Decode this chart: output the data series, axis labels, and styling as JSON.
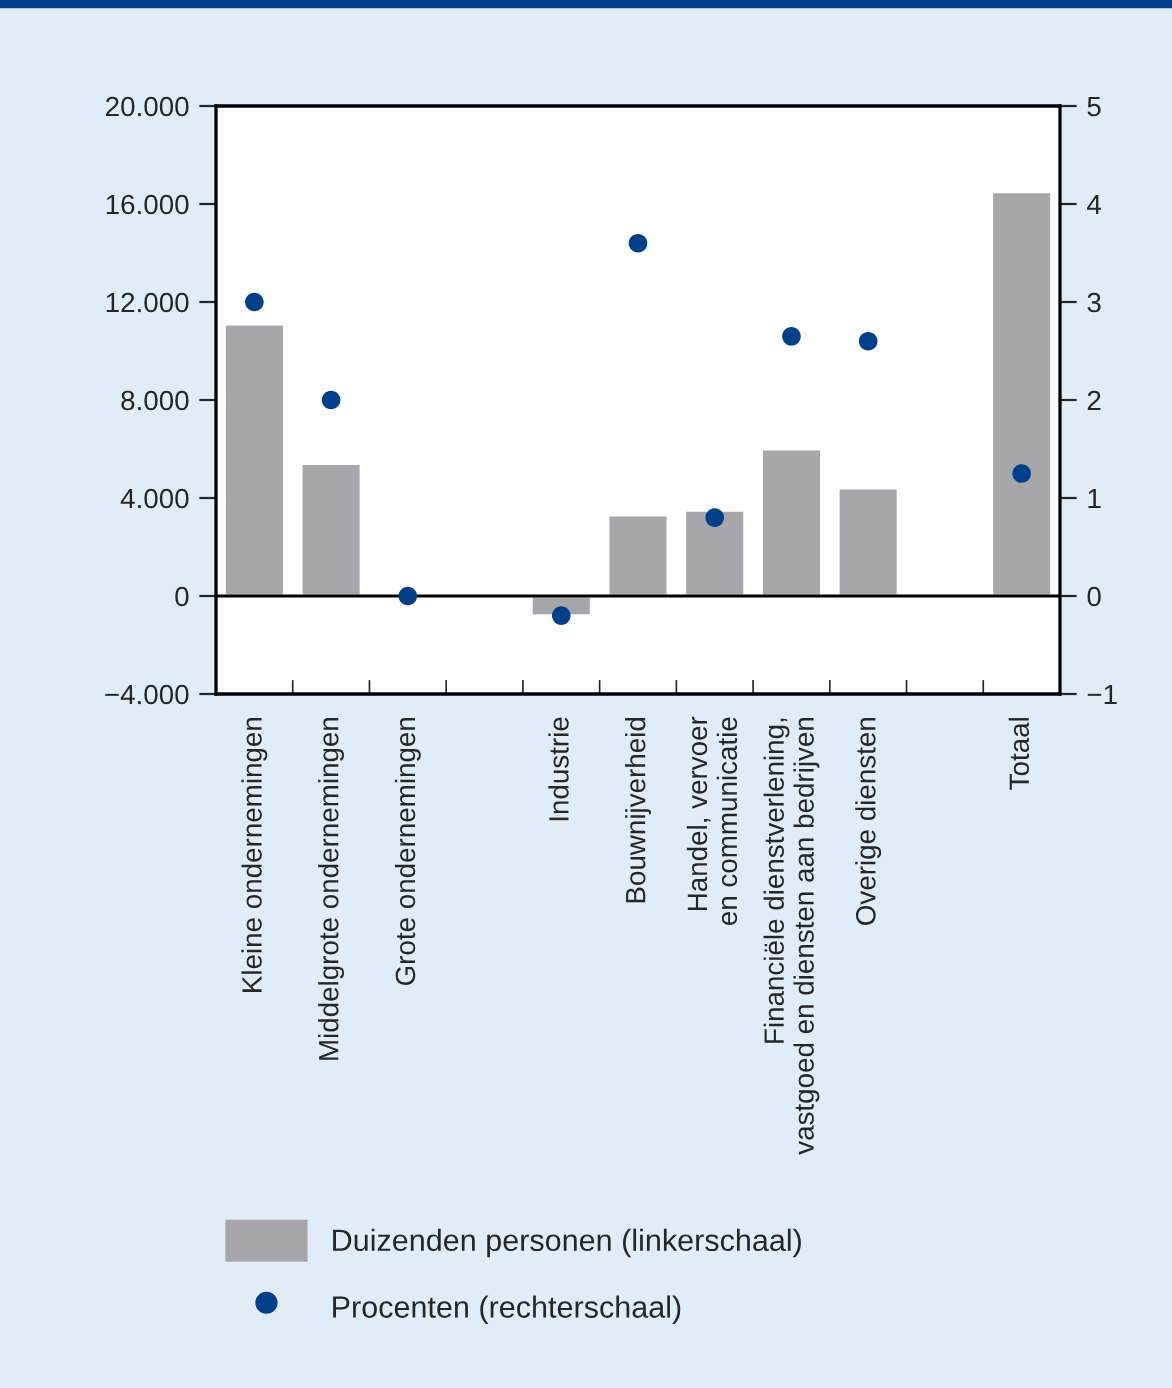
{
  "chart_data": {
    "type": "bar",
    "categories": [
      "Kleine ondernemingen",
      "Middelgrote ondernemingen",
      "Grote ondernemingen",
      null,
      "Industrie",
      "Bouwnijverheid",
      "Handel, vervoer\nen communicatie",
      "Financiële dienstverlening,\nvastgoed en diensten aan bedrijven",
      "Overige diensten",
      null,
      "Totaal"
    ],
    "series": [
      {
        "name": "Duizenden personen (linkerschaal)",
        "axis": "y",
        "color": "#a7a6aa",
        "values": [
          11100,
          5400,
          null,
          null,
          -800,
          3300,
          3500,
          6000,
          4400,
          null,
          16500
        ]
      },
      {
        "name": "Procenten (rechterschaal)",
        "type": "scatter",
        "axis": "y2",
        "color": "#003f8a",
        "values": [
          3.0,
          2.0,
          0,
          null,
          -0.2,
          3.6,
          0.8,
          2.65,
          2.6,
          null,
          1.25
        ]
      }
    ],
    "ylim": [
      -4000,
      20000
    ],
    "yticks": [
      {
        "value": -4000,
        "label": "−4.000"
      },
      {
        "value": 0,
        "label": "0"
      },
      {
        "value": 4000,
        "label": "4.000"
      },
      {
        "value": 8000,
        "label": "8.000"
      },
      {
        "value": 12000,
        "label": "12.000"
      },
      {
        "value": 16000,
        "label": "16.000"
      },
      {
        "value": 20000,
        "label": "20.000"
      }
    ],
    "y2lim": [
      -1,
      5
    ],
    "y2ticks": [
      {
        "value": -1,
        "label": "−1"
      },
      0,
      1,
      2,
      3,
      4,
      5
    ],
    "ref_lines": [
      {
        "axis": "y",
        "value": 0,
        "color": "#000000"
      }
    ],
    "marker": "circle",
    "grid": false,
    "legend": "bottom"
  }
}
